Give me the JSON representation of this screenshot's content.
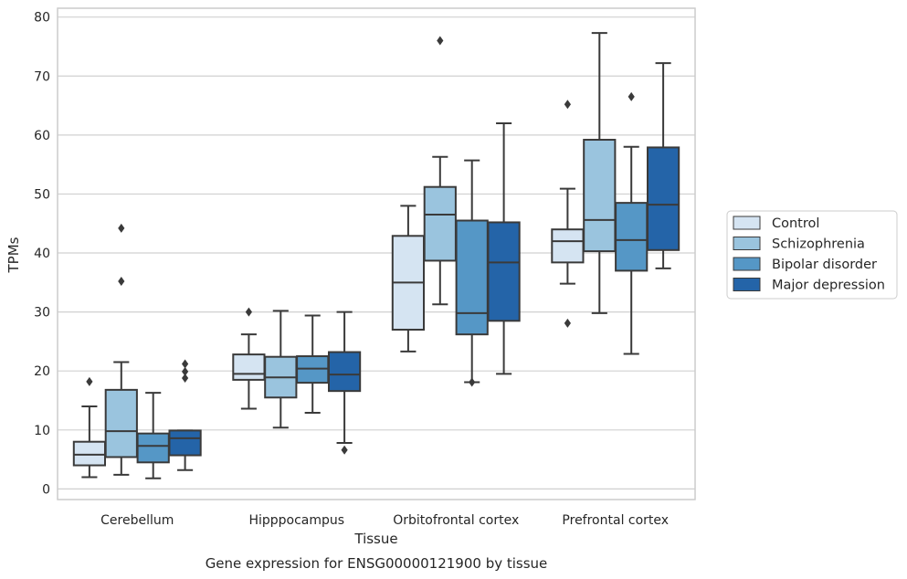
{
  "chart_data": {
    "type": "box",
    "title": "",
    "xlabel": "Tissue",
    "ylabel": "TPMs",
    "caption": "Gene expression for ENSG00000121900 by tissue",
    "ylim": [
      -1.8,
      81.5
    ],
    "yticks": [
      0,
      10,
      20,
      30,
      40,
      50,
      60,
      70,
      80
    ],
    "grid": true,
    "legend_position": "right",
    "categories": [
      "Cerebellum",
      "Hipppocampus",
      "Orbitofrontal cortex",
      "Prefrontal cortex"
    ],
    "series": [
      {
        "name": "Control",
        "color": "#d5e4f2",
        "boxes": [
          {
            "whisker_low": 2.0,
            "q1": 4.0,
            "median": 5.8,
            "q3": 8.0,
            "whisker_high": 14.0,
            "outliers": [
              18.2
            ]
          },
          {
            "whisker_low": 13.6,
            "q1": 18.5,
            "median": 19.5,
            "q3": 22.8,
            "whisker_high": 26.2,
            "outliers": [
              30.0
            ]
          },
          {
            "whisker_low": 23.3,
            "q1": 27.0,
            "median": 35.0,
            "q3": 42.9,
            "whisker_high": 48.0,
            "outliers": []
          },
          {
            "whisker_low": 34.8,
            "q1": 38.4,
            "median": 42.0,
            "q3": 44.0,
            "whisker_high": 50.9,
            "outliers": [
              65.2,
              28.1
            ]
          }
        ]
      },
      {
        "name": "Schizophrenia",
        "color": "#9ac4de",
        "boxes": [
          {
            "whisker_low": 2.4,
            "q1": 5.4,
            "median": 9.8,
            "q3": 16.8,
            "whisker_high": 21.5,
            "outliers": [
              44.2,
              35.2
            ]
          },
          {
            "whisker_low": 10.4,
            "q1": 15.5,
            "median": 18.9,
            "q3": 22.4,
            "whisker_high": 30.2,
            "outliers": []
          },
          {
            "whisker_low": 31.3,
            "q1": 38.7,
            "median": 46.5,
            "q3": 51.2,
            "whisker_high": 56.3,
            "outliers": [
              76.0
            ]
          },
          {
            "whisker_low": 29.8,
            "q1": 40.3,
            "median": 45.6,
            "q3": 59.2,
            "whisker_high": 77.3,
            "outliers": []
          }
        ]
      },
      {
        "name": "Bipolar disorder",
        "color": "#5597c6",
        "boxes": [
          {
            "whisker_low": 1.8,
            "q1": 4.5,
            "median": 7.3,
            "q3": 9.4,
            "whisker_high": 16.3,
            "outliers": []
          },
          {
            "whisker_low": 12.9,
            "q1": 18.0,
            "median": 20.4,
            "q3": 22.5,
            "whisker_high": 29.4,
            "outliers": []
          },
          {
            "whisker_low": 18.1,
            "q1": 26.2,
            "median": 29.8,
            "q3": 45.5,
            "whisker_high": 55.7,
            "outliers": [
              18.1
            ]
          },
          {
            "whisker_low": 22.9,
            "q1": 37.0,
            "median": 42.2,
            "q3": 48.5,
            "whisker_high": 58.0,
            "outliers": [
              66.5
            ]
          }
        ]
      },
      {
        "name": "Major depression",
        "color": "#2464a8",
        "boxes": [
          {
            "whisker_low": 3.2,
            "q1": 5.7,
            "median": 8.6,
            "q3": 9.9,
            "whisker_high": 9.9,
            "outliers": [
              21.2,
              19.9,
              18.8
            ]
          },
          {
            "whisker_low": 7.8,
            "q1": 16.6,
            "median": 19.4,
            "q3": 23.2,
            "whisker_high": 30.0,
            "outliers": [
              6.6
            ]
          },
          {
            "whisker_low": 19.5,
            "q1": 28.5,
            "median": 38.4,
            "q3": 45.2,
            "whisker_high": 62.0,
            "outliers": []
          },
          {
            "whisker_low": 37.4,
            "q1": 40.5,
            "median": 48.2,
            "q3": 57.9,
            "whisker_high": 72.2,
            "outliers": []
          }
        ]
      }
    ]
  }
}
